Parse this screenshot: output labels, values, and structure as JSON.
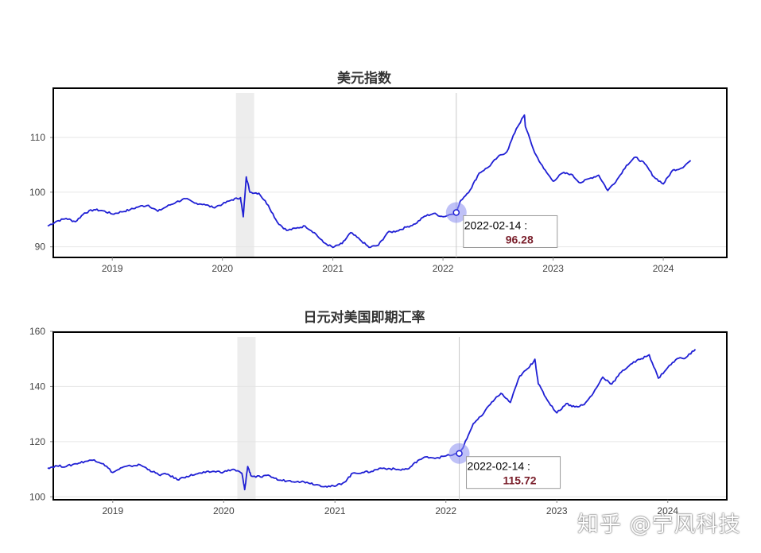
{
  "chart_data": [
    {
      "type": "line",
      "title": "美元指数",
      "xlabel": "",
      "ylabel": "",
      "x_ticks": [
        "2019",
        "2020",
        "2021",
        "2022",
        "2023",
        "2024"
      ],
      "y_ticks": [
        90,
        100,
        110
      ],
      "ylim": [
        88.5,
        118
      ],
      "xlim": [
        "2018-06-01",
        "2024-05-01"
      ],
      "grid": "horizontal",
      "line_color": "#1f1fd4",
      "shaded_period": [
        "2020-02-15",
        "2020-04-15"
      ],
      "cursor_date": "2022-02-14",
      "tooltip": {
        "date": "2022-02-14 :",
        "value": "96.28"
      },
      "series": [
        {
          "x": [
            "2018-06",
            "2018-07",
            "2018-08",
            "2018-09",
            "2018-10",
            "2018-11",
            "2018-12",
            "2019-01",
            "2019-02",
            "2019-03",
            "2019-04",
            "2019-05",
            "2019-06",
            "2019-07",
            "2019-08",
            "2019-09",
            "2019-10",
            "2019-11",
            "2019-12",
            "2020-01",
            "2020-02",
            "2020-03",
            "2020-03-10",
            "2020-03-20",
            "2020-04",
            "2020-05",
            "2020-06",
            "2020-07",
            "2020-08",
            "2020-09",
            "2020-10",
            "2020-11",
            "2020-12",
            "2021-01",
            "2021-02",
            "2021-03",
            "2021-04",
            "2021-05",
            "2021-06",
            "2021-07",
            "2021-08",
            "2021-09",
            "2021-10",
            "2021-11",
            "2021-12",
            "2022-01",
            "2022-02-14",
            "2022-03",
            "2022-04",
            "2022-05",
            "2022-06",
            "2022-07",
            "2022-08",
            "2022-09",
            "2022-09-28",
            "2022-10",
            "2022-11",
            "2022-12",
            "2023-01",
            "2023-02",
            "2023-03",
            "2023-04",
            "2023-05",
            "2023-06",
            "2023-07",
            "2023-08",
            "2023-09",
            "2023-10",
            "2023-11",
            "2023-12",
            "2024-01",
            "2024-02",
            "2024-03",
            "2024-04"
          ],
          "y": [
            93.8,
            94.7,
            95.2,
            94.6,
            96.2,
            96.8,
            96.6,
            96.0,
            96.4,
            96.8,
            97.4,
            97.6,
            96.5,
            97.4,
            98.2,
            98.8,
            98.0,
            97.8,
            97.2,
            97.8,
            98.6,
            99.0,
            95.5,
            102.8,
            100.0,
            99.8,
            97.6,
            94.5,
            93.0,
            93.4,
            93.8,
            92.6,
            90.8,
            89.9,
            90.6,
            92.6,
            91.3,
            89.9,
            90.3,
            92.6,
            92.9,
            93.6,
            94.2,
            95.6,
            96.1,
            95.5,
            96.28,
            98.5,
            100.4,
            103.5,
            104.6,
            106.4,
            107.4,
            111.6,
            114.1,
            112.0,
            107.2,
            104.3,
            102.0,
            103.5,
            103.3,
            101.7,
            102.5,
            103.1,
            100.3,
            102.3,
            104.9,
            106.4,
            105.2,
            102.8,
            101.5,
            104.0,
            104.4,
            105.8
          ]
        }
      ]
    },
    {
      "type": "line",
      "title": "日元对美国即期汇率",
      "xlabel": "",
      "ylabel": "",
      "x_ticks": [
        "2019",
        "2020",
        "2021",
        "2022",
        "2023",
        "2024"
      ],
      "y_ticks": [
        100,
        120,
        140,
        160
      ],
      "ylim": [
        99.5,
        160
      ],
      "xlim": [
        "2018-06-01",
        "2024-05-01"
      ],
      "grid": "horizontal",
      "line_color": "#1f1fd4",
      "shaded_period": [
        "2020-02-15",
        "2020-04-15"
      ],
      "cursor_date": "2022-02-14",
      "tooltip": {
        "date": "2022-02-14 :",
        "value": "115.72"
      },
      "series": [
        {
          "x": [
            "2018-06",
            "2018-07",
            "2018-08",
            "2018-09",
            "2018-10",
            "2018-11",
            "2018-12",
            "2019-01",
            "2019-02",
            "2019-03",
            "2019-04",
            "2019-05",
            "2019-06",
            "2019-07",
            "2019-08",
            "2019-09",
            "2019-10",
            "2019-11",
            "2019-12",
            "2020-01",
            "2020-02",
            "2020-03",
            "2020-03-10",
            "2020-03-20",
            "2020-04",
            "2020-05",
            "2020-06",
            "2020-07",
            "2020-08",
            "2020-09",
            "2020-10",
            "2020-11",
            "2020-12",
            "2021-01",
            "2021-02",
            "2021-03",
            "2021-04",
            "2021-05",
            "2021-06",
            "2021-07",
            "2021-08",
            "2021-09",
            "2021-10",
            "2021-11",
            "2021-12",
            "2022-01",
            "2022-02-14",
            "2022-03",
            "2022-04",
            "2022-05",
            "2022-06",
            "2022-07",
            "2022-08",
            "2022-09",
            "2022-10",
            "2022-10-21",
            "2022-11",
            "2022-12",
            "2023-01",
            "2023-02",
            "2023-03",
            "2023-04",
            "2023-05",
            "2023-06",
            "2023-07",
            "2023-08",
            "2023-09",
            "2023-10",
            "2023-11",
            "2023-12",
            "2024-01",
            "2024-02",
            "2024-03",
            "2024-04"
          ],
          "y": [
            110.5,
            111.2,
            111.0,
            112.0,
            112.8,
            113.4,
            112.0,
            108.8,
            110.6,
            111.2,
            111.6,
            109.8,
            108.0,
            108.2,
            106.2,
            107.4,
            108.2,
            108.8,
            109.2,
            109.0,
            110.0,
            108.5,
            102.6,
            111.0,
            107.5,
            107.2,
            107.6,
            106.0,
            105.8,
            105.6,
            105.3,
            104.4,
            103.8,
            103.8,
            105.3,
            108.6,
            108.8,
            109.2,
            110.4,
            110.2,
            109.8,
            110.2,
            113.2,
            114.5,
            114.1,
            114.8,
            115.72,
            118.5,
            126.5,
            129.6,
            134.4,
            137.5,
            134.2,
            143.8,
            146.8,
            149.9,
            141.0,
            135.0,
            130.4,
            133.8,
            132.6,
            133.4,
            137.6,
            143.4,
            140.9,
            145.2,
            148.1,
            149.8,
            151.5,
            143.0,
            146.9,
            150.1,
            150.5,
            153.5
          ]
        }
      ]
    }
  ],
  "watermark": "知乎 @宁风科技"
}
